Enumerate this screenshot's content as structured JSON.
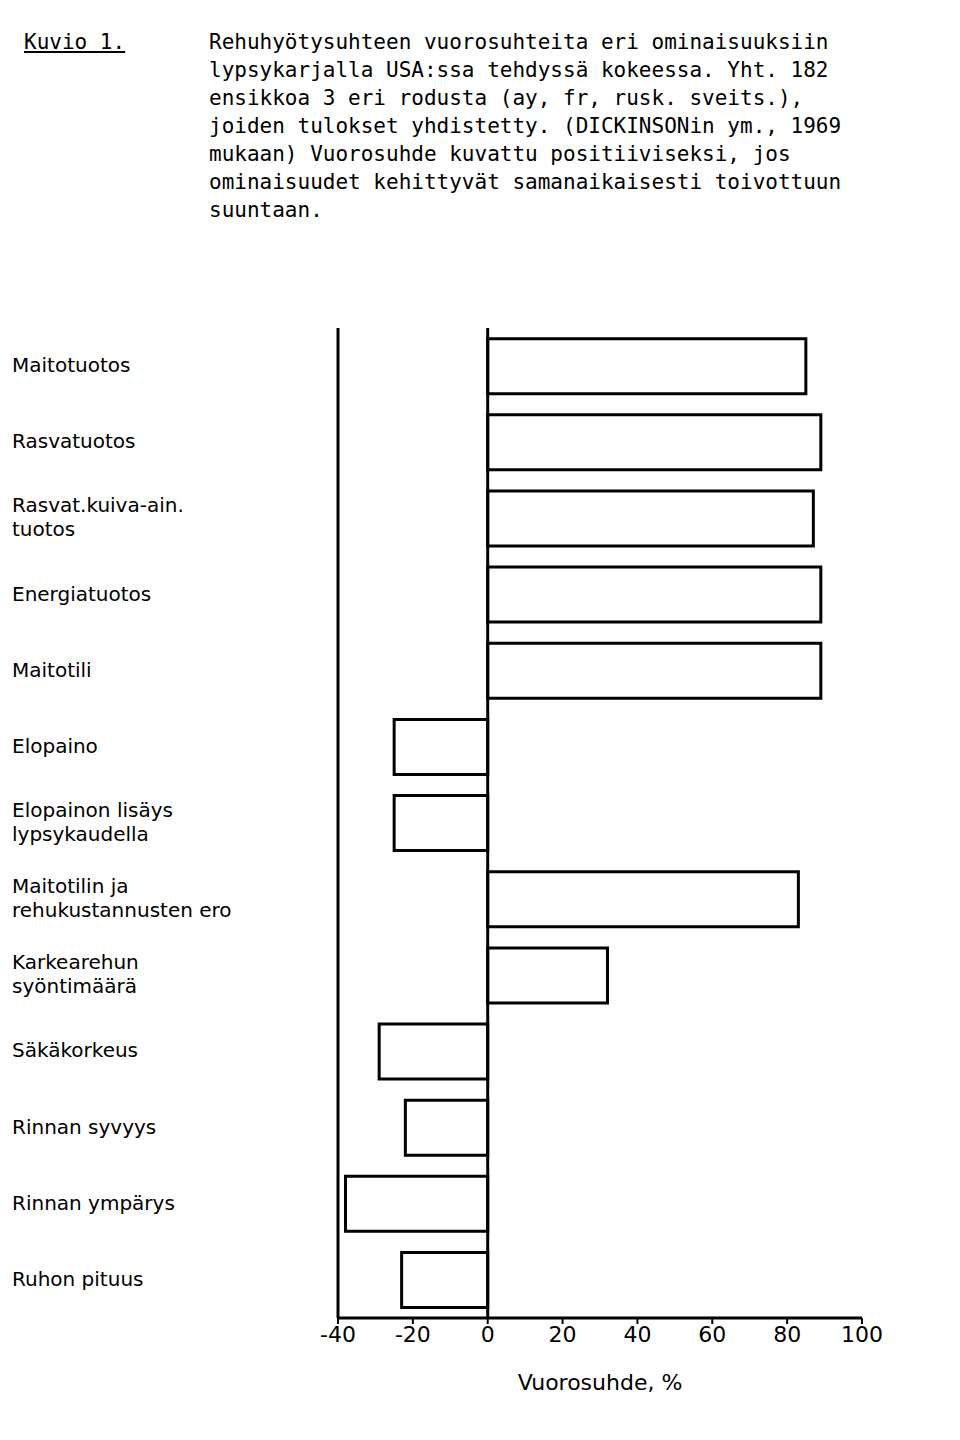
{
  "chart_data": {
    "type": "bar",
    "orientation": "horizontal",
    "title": "Kuvio 1.",
    "subtitle": "Rehuhyötysuhteen vuorosuhteita eri ominaisuuksiin lypsykarjalla USA:ssa tehdyssä kokeessa. Yht. 182 ensikkoa 3 eri rodusta (ay, fr, rusk. sveits.), joiden tulokset yhdistetty. (DICKINSONin ym., 1969 mukaan) Vuorosuhde kuvattu positiiviseksi, jos ominaisuudet kehittyvät samanaikaisesti toivottuun suuntaan.",
    "x_label": "Vuorosuhde, %",
    "categories": [
      "Maitotuotos",
      "Rasvatuotos",
      "Rasvat.kuiva-ain. tuotos",
      "Energiatuotos",
      "Maitotili",
      "Elopaino",
      "Elopainon lisäys lypsykaudella",
      "Maitotilin ja rehukustannusten ero",
      "Karkearehun syöntimäärä",
      "Säkäkorkeus",
      "Rinnan syvyys",
      "Rinnan ympärys",
      "Ruhon pituus"
    ],
    "values": [
      85,
      89,
      87,
      89,
      89,
      -25,
      -25,
      83,
      32,
      -29,
      -22,
      -38,
      -23
    ],
    "color": "#ffffff",
    "xlim": [
      -40,
      100
    ],
    "xticks": [
      -40,
      -20,
      0,
      20,
      40,
      60,
      80,
      100
    ],
    "grid": false
  }
}
